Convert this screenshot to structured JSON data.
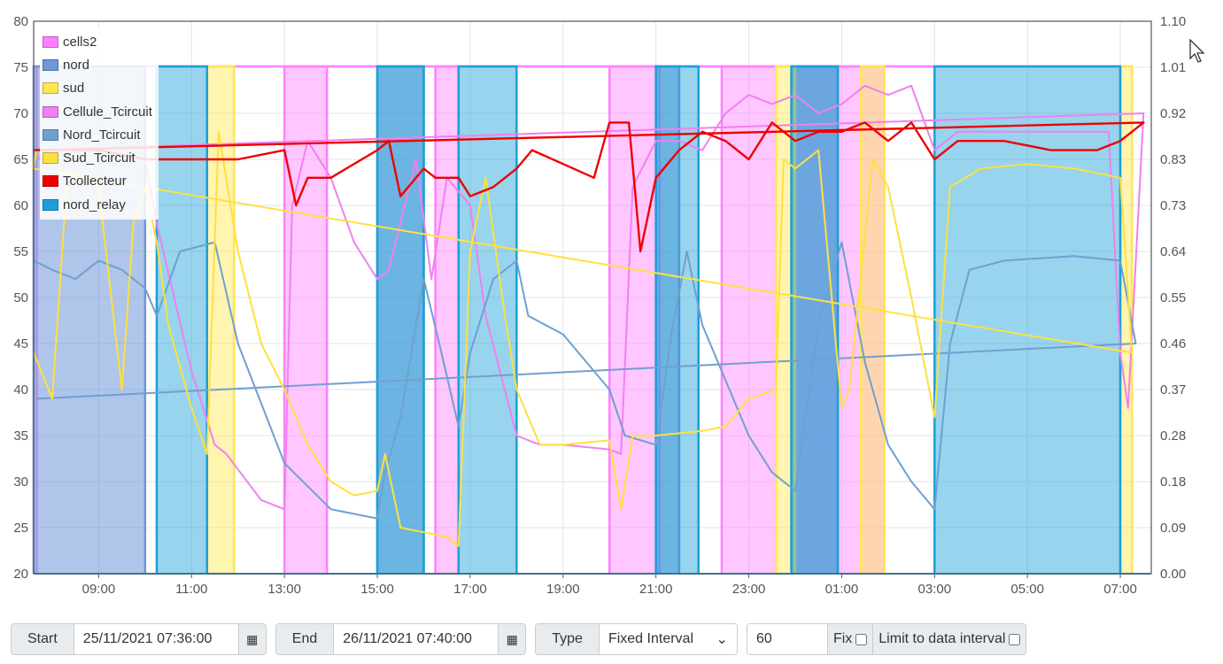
{
  "chart_data": {
    "type": "line",
    "xlabel": "",
    "ylabel": "",
    "x_range": [
      "07:36",
      "07:40 (+1 day)"
    ],
    "x_ticks": [
      "09:00",
      "11:00",
      "13:00",
      "15:00",
      "17:00",
      "19:00",
      "21:00",
      "23:00",
      "01:00",
      "03:00",
      "05:00",
      "07:00"
    ],
    "y_left": {
      "range": [
        20,
        80
      ],
      "ticks": [
        "20",
        "25",
        "30",
        "35",
        "40",
        "45",
        "50",
        "55",
        "60",
        "65",
        "70",
        "75",
        "80"
      ]
    },
    "y_right": {
      "range": [
        0,
        1.1
      ],
      "ticks": [
        "0.00",
        "0.09",
        "0.18",
        "0.28",
        "0.37",
        "0.46",
        "0.55",
        "0.64",
        "0.73",
        "0.83",
        "0.92",
        "1.01",
        "1.10"
      ]
    },
    "legend_placement": "top-left",
    "grid": true,
    "series": [
      {
        "name": "cells2",
        "color": "#ff80ff",
        "kind": "area-relay",
        "axis": "right",
        "on_intervals": [
          [
            "13:00",
            "13:55"
          ],
          [
            "16:15",
            "16:45"
          ],
          [
            "20:00",
            "21:05"
          ],
          [
            "22:25",
            "23:35"
          ],
          [
            "00:00",
            "01:55"
          ],
          [
            "07:00",
            "07:40"
          ]
        ]
      },
      {
        "name": "nord",
        "color": "#6e96d8",
        "kind": "area-relay",
        "axis": "right",
        "on_intervals": [
          [
            "07:36",
            "10:00"
          ],
          [
            "15:00",
            "16:00"
          ],
          [
            "21:00",
            "21:30"
          ],
          [
            "23:55",
            "00:55"
          ]
        ]
      },
      {
        "name": "sud",
        "color": "#ffe650",
        "kind": "area-relay",
        "axis": "right",
        "on_intervals": [
          [
            "11:20",
            "11:55"
          ],
          [
            "23:35",
            "00:00"
          ],
          [
            "01:25",
            "01:55"
          ],
          [
            "07:00",
            "07:15"
          ]
        ]
      },
      {
        "name": "Cellule_Tcircuit",
        "color": "#f080f0",
        "axis": "left",
        "points": [
          [
            "07:36",
            65
          ],
          [
            "09:00",
            66
          ],
          [
            "10:00",
            65
          ],
          [
            "10:15",
            58
          ],
          [
            "11:00",
            42
          ],
          [
            "11:30",
            34
          ],
          [
            "11:45",
            33
          ],
          [
            "12:30",
            28
          ],
          [
            "13:00",
            27
          ],
          [
            "13:10",
            60
          ],
          [
            "13:30",
            67
          ],
          [
            "14:00",
            63
          ],
          [
            "14:30",
            56
          ],
          [
            "15:00",
            52
          ],
          [
            "15:15",
            53
          ],
          [
            "15:50",
            65
          ],
          [
            "16:10",
            52
          ],
          [
            "16:30",
            63
          ],
          [
            "17:00",
            60
          ],
          [
            "17:20",
            48
          ],
          [
            "18:00",
            35
          ],
          [
            "18:30",
            34
          ],
          [
            "19:00",
            34
          ],
          [
            "20:00",
            33.5
          ],
          [
            "20:15",
            33
          ],
          [
            "20:30",
            62
          ],
          [
            "21:00",
            67
          ],
          [
            "21:30",
            67
          ],
          [
            "22:00",
            66
          ],
          [
            "22:30",
            70
          ],
          [
            "23:00",
            72
          ],
          [
            "23:30",
            71
          ],
          [
            "00:00",
            72
          ],
          [
            "00:30",
            70
          ],
          [
            "01:00",
            71
          ],
          [
            "01:30",
            73
          ],
          [
            "02:00",
            72
          ],
          [
            "02:30",
            73
          ],
          [
            "03:00",
            66
          ],
          [
            "03:30",
            68
          ],
          [
            "05:00",
            68
          ],
          [
            "06:45",
            68
          ],
          [
            "07:00",
            44
          ],
          [
            "07:10",
            38
          ],
          [
            "07:30",
            70
          ],
          [
            "07:40",
            66
          ]
        ]
      },
      {
        "name": "Nord_Tcircuit",
        "color": "#6fa0d0",
        "axis": "left",
        "points": [
          [
            "07:36",
            54
          ],
          [
            "08:00",
            53
          ],
          [
            "08:30",
            52
          ],
          [
            "09:00",
            54
          ],
          [
            "09:30",
            53
          ],
          [
            "10:00",
            51
          ],
          [
            "10:15",
            48
          ],
          [
            "10:45",
            55
          ],
          [
            "11:30",
            56
          ],
          [
            "12:00",
            45
          ],
          [
            "13:00",
            32
          ],
          [
            "14:00",
            27
          ],
          [
            "15:00",
            26
          ],
          [
            "15:10",
            31
          ],
          [
            "15:30",
            37
          ],
          [
            "16:00",
            52
          ],
          [
            "16:20",
            45
          ],
          [
            "16:45",
            36
          ],
          [
            "17:00",
            44
          ],
          [
            "17:30",
            52
          ],
          [
            "18:00",
            54
          ],
          [
            "18:15",
            48
          ],
          [
            "19:00",
            46
          ],
          [
            "20:00",
            40
          ],
          [
            "20:20",
            35
          ],
          [
            "21:00",
            34
          ],
          [
            "21:20",
            46
          ],
          [
            "21:40",
            55
          ],
          [
            "22:00",
            47
          ],
          [
            "23:00",
            35
          ],
          [
            "23:30",
            31
          ],
          [
            "00:00",
            29
          ],
          [
            "00:30",
            47
          ],
          [
            "01:00",
            56
          ],
          [
            "01:30",
            43
          ],
          [
            "02:00",
            34
          ],
          [
            "02:30",
            30
          ],
          [
            "03:00",
            27
          ],
          [
            "03:20",
            45
          ],
          [
            "03:45",
            53
          ],
          [
            "04:30",
            54
          ],
          [
            "06:00",
            54.5
          ],
          [
            "07:00",
            54
          ],
          [
            "07:20",
            45
          ],
          [
            "07:40",
            39
          ]
        ]
      },
      {
        "name": "Sud_Tcircuit",
        "color": "#ffe040",
        "axis": "left",
        "points": [
          [
            "07:36",
            44
          ],
          [
            "08:00",
            39
          ],
          [
            "08:20",
            64
          ],
          [
            "09:00",
            62
          ],
          [
            "09:30",
            40
          ],
          [
            "09:45",
            58
          ],
          [
            "10:00",
            62
          ],
          [
            "10:15",
            56
          ],
          [
            "10:30",
            47
          ],
          [
            "11:00",
            38
          ],
          [
            "11:20",
            33
          ],
          [
            "11:35",
            68
          ],
          [
            "12:00",
            55
          ],
          [
            "12:30",
            45
          ],
          [
            "13:00",
            40
          ],
          [
            "13:30",
            34
          ],
          [
            "14:00",
            30
          ],
          [
            "14:30",
            28.5
          ],
          [
            "15:00",
            29
          ],
          [
            "15:10",
            33
          ],
          [
            "15:30",
            25
          ],
          [
            "16:00",
            24.5
          ],
          [
            "16:30",
            24
          ],
          [
            "16:45",
            23
          ],
          [
            "17:00",
            55
          ],
          [
            "17:20",
            63
          ],
          [
            "17:45",
            48
          ],
          [
            "18:00",
            40
          ],
          [
            "18:30",
            34
          ],
          [
            "19:00",
            34
          ],
          [
            "20:00",
            34.5
          ],
          [
            "20:15",
            27
          ],
          [
            "20:30",
            35
          ],
          [
            "21:00",
            35
          ],
          [
            "22:00",
            35.5
          ],
          [
            "22:30",
            36
          ],
          [
            "23:00",
            39
          ],
          [
            "23:35",
            40
          ],
          [
            "23:45",
            65
          ],
          [
            "24:00",
            64
          ],
          [
            "00:30",
            66
          ],
          [
            "01:00",
            38
          ],
          [
            "01:10",
            40
          ],
          [
            "01:40",
            65
          ],
          [
            "02:00",
            62
          ],
          [
            "02:30",
            50
          ],
          [
            "03:00",
            37
          ],
          [
            "03:20",
            62
          ],
          [
            "04:00",
            64
          ],
          [
            "05:00",
            64.5
          ],
          [
            "06:00",
            64
          ],
          [
            "07:00",
            63
          ],
          [
            "07:15",
            44
          ],
          [
            "07:35",
            64
          ],
          [
            "07:40",
            66
          ]
        ]
      },
      {
        "name": "Tcollecteur",
        "color": "#ee0000",
        "axis": "left",
        "points": [
          [
            "07:36",
            66
          ],
          [
            "09:00",
            66
          ],
          [
            "10:00",
            65
          ],
          [
            "11:00",
            65
          ],
          [
            "12:00",
            65
          ],
          [
            "13:00",
            66
          ],
          [
            "13:15",
            60
          ],
          [
            "13:30",
            63
          ],
          [
            "14:00",
            63
          ],
          [
            "15:00",
            66
          ],
          [
            "15:15",
            67
          ],
          [
            "15:30",
            61
          ],
          [
            "16:00",
            64
          ],
          [
            "16:15",
            63
          ],
          [
            "16:45",
            63
          ],
          [
            "17:00",
            61
          ],
          [
            "17:30",
            62
          ],
          [
            "18:00",
            64
          ],
          [
            "18:20",
            66
          ],
          [
            "19:00",
            64.5
          ],
          [
            "19:40",
            63
          ],
          [
            "20:00",
            69
          ],
          [
            "20:25",
            69
          ],
          [
            "20:40",
            55
          ],
          [
            "21:00",
            63
          ],
          [
            "21:30",
            66
          ],
          [
            "22:00",
            68
          ],
          [
            "22:30",
            67
          ],
          [
            "23:00",
            65
          ],
          [
            "23:30",
            69
          ],
          [
            "00:00",
            67
          ],
          [
            "00:30",
            68
          ],
          [
            "01:00",
            68
          ],
          [
            "01:30",
            69
          ],
          [
            "02:00",
            67
          ],
          [
            "02:30",
            69
          ],
          [
            "03:00",
            65
          ],
          [
            "03:30",
            67
          ],
          [
            "04:30",
            67
          ],
          [
            "05:30",
            66
          ],
          [
            "06:30",
            66
          ],
          [
            "07:00",
            67
          ],
          [
            "07:30",
            69
          ],
          [
            "07:40",
            66
          ]
        ]
      },
      {
        "name": "nord_relay",
        "color": "#1ba0d8",
        "kind": "area-relay",
        "axis": "right",
        "on_intervals": [
          [
            "10:15",
            "11:20"
          ],
          [
            "15:00",
            "16:00"
          ],
          [
            "16:45",
            "18:00"
          ],
          [
            "21:00",
            "21:55"
          ],
          [
            "23:55",
            "00:55"
          ],
          [
            "03:00",
            "07:00"
          ]
        ]
      }
    ]
  },
  "controls": {
    "start_label": "Start",
    "start_value": "25/11/2021 07:36:00",
    "end_label": "End",
    "end_value": "26/11/2021 07:40:00",
    "type_label": "Type",
    "type_value": "Fixed Interval",
    "interval_value": "60",
    "fix_label": "Fix",
    "limit_label": "Limit to data interval"
  }
}
